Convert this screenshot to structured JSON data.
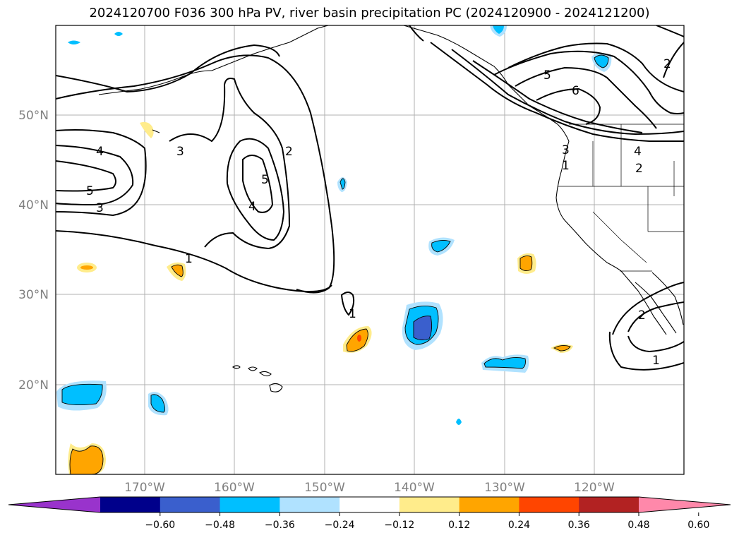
{
  "title": "2024120700 F036 300 hPa PV, river basin precipitation PC (2024120900 - 2024121200)",
  "map": {
    "lon_labels": [
      "170°W",
      "160°W",
      "150°W",
      "140°W",
      "130°W",
      "120°W"
    ],
    "lat_labels": [
      "50°N",
      "40°N",
      "30°N",
      "20°N"
    ],
    "contour_levels": [
      "1",
      "2",
      "3",
      "4",
      "5",
      "6"
    ]
  },
  "contour_labels": [
    "5",
    "6",
    "2",
    "4",
    "3",
    "1",
    "2",
    "4",
    "3",
    "5",
    "3",
    "2",
    "5",
    "4",
    "1",
    "1",
    "2",
    "1"
  ],
  "colorbar": {
    "tick_labels": [
      "−0.60",
      "−0.48",
      "−0.36",
      "−0.24",
      "−0.12",
      "0.12",
      "0.24",
      "0.36",
      "0.48",
      "0.60"
    ],
    "colors": [
      "#9933cc",
      "#00008b",
      "#3a5fcd",
      "#00bfff",
      "#b0e2ff",
      "#ffffff",
      "#ffec8b",
      "#ffa500",
      "#ff4500",
      "#b22222",
      "#ff88aa"
    ]
  }
}
